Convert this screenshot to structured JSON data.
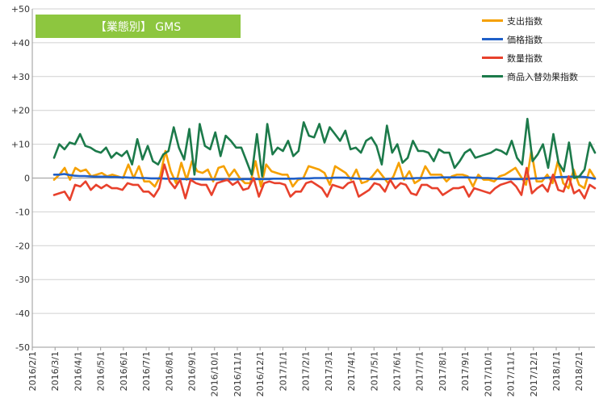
{
  "chart_data": {
    "type": "line",
    "title": "【業態別】 GMS",
    "title_bg_color": "#8DC63F",
    "ylim": [
      -50,
      50
    ],
    "yticks": [
      "+50",
      "+40",
      "+30",
      "+20",
      "+10",
      "0",
      "-10",
      "-20",
      "-30",
      "-40",
      "-50"
    ],
    "grid": true,
    "legend_position": "top-right",
    "x_labels": [
      "2016/2/1",
      "2016/3/1",
      "2016/4/1",
      "2016/5/1",
      "2016/6/1",
      "2016/7/1",
      "2016/8/1",
      "2016/9/1",
      "2016/10/1",
      "2016/11/1",
      "2016/12/1",
      "2017/1/1",
      "2017/2/1",
      "2017/3/1",
      "2017/4/1",
      "2017/5/1",
      "2017/6/1",
      "2017/7/1",
      "2017/8/1",
      "2017/9/1",
      "2017/10/1",
      "2017/11/1",
      "2017/12/1",
      "2018/1/1",
      "2018/2/1"
    ],
    "series": [
      {
        "name": "支出指数",
        "color": "#F5A000",
        "values": [
          -0.5,
          1,
          3,
          -0.5,
          3,
          2,
          2.5,
          0.5,
          1,
          1.5,
          0.5,
          1,
          0.5,
          0,
          4,
          0,
          3.5,
          -1,
          -1,
          -2.5,
          0.5,
          8,
          2,
          -1.5,
          4.5,
          -0.5,
          5,
          2,
          1.5,
          2.5,
          -1,
          3,
          3.5,
          0.5,
          2.5,
          0,
          -1.5,
          -1.5,
          5,
          -2.5,
          4,
          2,
          1.5,
          1,
          1,
          -2.5,
          -0.5,
          0,
          3.5,
          3,
          2.5,
          1.5,
          -2,
          3.5,
          2.5,
          1.5,
          -0.5,
          2.5,
          -1.5,
          -1,
          0.5,
          2.5,
          0.5,
          -1.5,
          0.5,
          4.5,
          -0.5,
          2,
          -1.5,
          -0.5,
          3.5,
          1,
          1,
          1,
          -1,
          0.5,
          1,
          1,
          0.5,
          -2.5,
          1,
          -0.5,
          -0.5,
          -1,
          0.5,
          1,
          2,
          3,
          0.5,
          -2,
          8,
          -1,
          -1,
          1,
          -1.5,
          5,
          -1.5,
          -3,
          2.5,
          -2,
          -3,
          2.5,
          0
        ]
      },
      {
        "name": "価格指数",
        "color": "#1F5FC8",
        "values": [
          1,
          1,
          1.2,
          0.9,
          0.7,
          0.6,
          0.6,
          0.5,
          0.4,
          0.4,
          0.4,
          0.3,
          0.3,
          0.2,
          0.2,
          0.1,
          0.1,
          0,
          0,
          -0.1,
          -0.1,
          -0.1,
          -0.2,
          -0.2,
          -0.2,
          -0.3,
          -0.3,
          -0.3,
          -0.3,
          -0.4,
          -0.4,
          -0.4,
          -0.4,
          -0.4,
          -0.4,
          -0.4,
          -0.4,
          -0.3,
          -0.3,
          -0.3,
          -0.3,
          -0.3,
          -0.3,
          -0.2,
          -0.2,
          -0.2,
          -0.2,
          -0.2,
          -0.1,
          -0.1,
          -0.1,
          0,
          0,
          0,
          0,
          0.1,
          0.1,
          0.1,
          0,
          -0.1,
          -0.2,
          -0.2,
          -0.3,
          -0.3,
          -0.3,
          -0.3,
          -0.2,
          -0.2,
          -0.1,
          -0.1,
          -0.1,
          0,
          0,
          0,
          0.1,
          0.1,
          0.2,
          0.2,
          0.2,
          0.2,
          0.2,
          0.2,
          0.1,
          0.1,
          0,
          0,
          -0.1,
          -0.2,
          -0.2,
          -0.3,
          -0.3,
          -0.3,
          -0.3,
          -0.2,
          -0.1,
          -0.1,
          0,
          0.1,
          0.2,
          0.3,
          0.3,
          0.4,
          0.4,
          0.4,
          0.3,
          0.1,
          -0.2
        ]
      },
      {
        "name": "数量指数",
        "color": "#E8412C",
        "values": [
          -5,
          -4.5,
          -4,
          -6.5,
          -2,
          -2.5,
          -1,
          -3.5,
          -2,
          -3,
          -2,
          -3,
          -3,
          -3.5,
          -1.5,
          -2,
          -2,
          -4,
          -4,
          -5.5,
          -3,
          4,
          -1,
          -3,
          -0.5,
          -6,
          -0.5,
          -1.5,
          -2,
          -2,
          -5,
          -1.5,
          -1,
          -0.5,
          -2,
          -1,
          -3.5,
          -3,
          0,
          -5.5,
          -1.5,
          -1,
          -1.5,
          -1.5,
          -2,
          -5.5,
          -4,
          -4,
          -1.5,
          -1,
          -2,
          -3,
          -5.5,
          -2,
          -2.5,
          -3,
          -1.5,
          -1,
          -5.5,
          -4.5,
          -3.5,
          -1.5,
          -2,
          -4,
          -0.5,
          -3,
          -1.5,
          -2,
          -4.5,
          -5,
          -2,
          -2,
          -3,
          -3,
          -5,
          -4,
          -3,
          -3,
          -2.5,
          -5.5,
          -3,
          -3.5,
          -4,
          -4.5,
          -3,
          -2,
          -1.5,
          -1,
          -2.5,
          -5,
          3,
          -4.5,
          -3,
          -2,
          -4,
          1,
          -3.5,
          -4,
          0.5,
          -4.5,
          -3.5,
          -6,
          -2,
          -3
        ]
      },
      {
        "name": "商品入替効果指数",
        "color": "#1C7A4A",
        "values": [
          6,
          10,
          8.5,
          10.5,
          10,
          13,
          9.5,
          9,
          8,
          7.5,
          9,
          6,
          7.5,
          6.5,
          8,
          4,
          11.5,
          5.5,
          9.5,
          5,
          4,
          7,
          8,
          15,
          9,
          5.5,
          14.5,
          1,
          16,
          9.5,
          8.5,
          13.5,
          6.5,
          12.5,
          11,
          9,
          9,
          5,
          1,
          13,
          0.5,
          16,
          7,
          9,
          8,
          11,
          6.5,
          8,
          16.5,
          12.5,
          12,
          16,
          10.5,
          15,
          13,
          11,
          14,
          8.5,
          9,
          7.5,
          11,
          12,
          9.5,
          4,
          15.5,
          7.5,
          10,
          4.5,
          6,
          11,
          8,
          8,
          7.5,
          5,
          8.5,
          7.5,
          7.5,
          3,
          5,
          7.5,
          8.5,
          6,
          6.5,
          7,
          7.5,
          8.5,
          8,
          7,
          11,
          6,
          4,
          17.5,
          5,
          7,
          10,
          3,
          13,
          4.5,
          2,
          10.5,
          0,
          0.5,
          2.5,
          10.5,
          7.5
        ]
      }
    ]
  }
}
